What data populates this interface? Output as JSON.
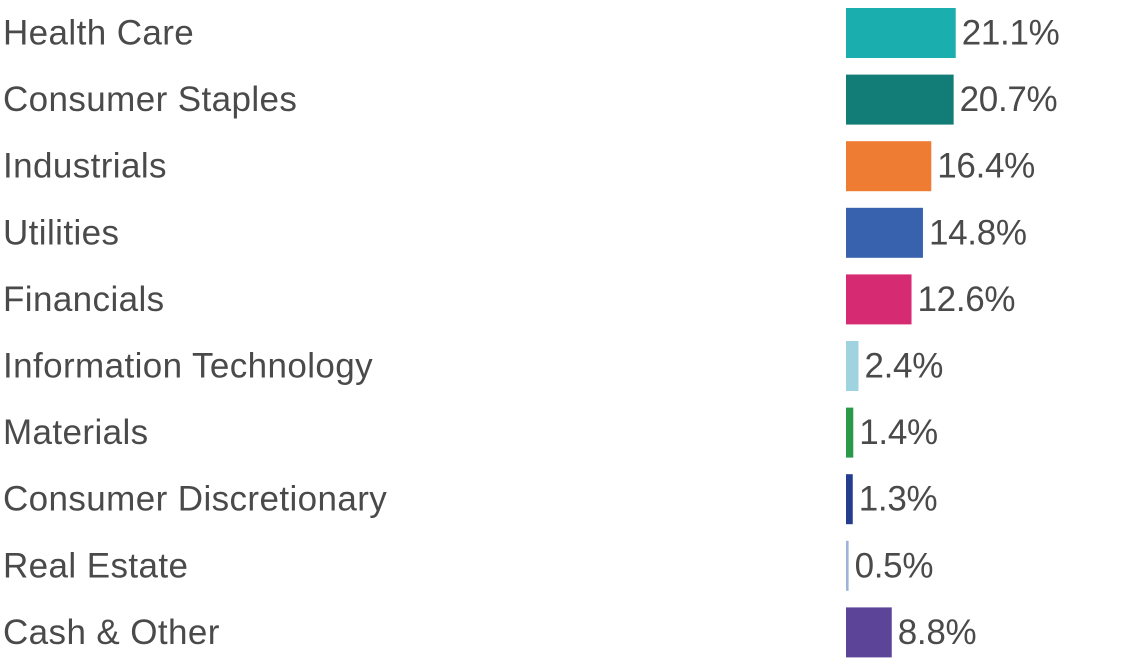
{
  "chart_data": {
    "type": "bar",
    "orientation": "horizontal",
    "categories": [
      "Health Care",
      "Consumer Staples",
      "Industrials",
      "Utilities",
      "Financials",
      "Information Technology",
      "Materials",
      "Consumer Discretionary",
      "Real Estate",
      "Cash & Other"
    ],
    "values": [
      21.1,
      20.7,
      16.4,
      14.8,
      12.6,
      2.4,
      1.4,
      1.3,
      0.5,
      8.8
    ],
    "value_labels": [
      "21.1%",
      "20.7%",
      "16.4%",
      "14.8%",
      "12.6%",
      "2.4%",
      "1.4%",
      "1.3%",
      "0.5%",
      "8.8%"
    ],
    "colors": [
      "#1aaeae",
      "#127d77",
      "#ee7d33",
      "#3862ad",
      "#d62b72",
      "#9fd3e0",
      "#2a9a4a",
      "#253d8f",
      "#9db4d8",
      "#5c4598"
    ],
    "unit": "%",
    "title": "",
    "xlabel": "",
    "ylabel": "",
    "grid": false,
    "legend": "none"
  }
}
